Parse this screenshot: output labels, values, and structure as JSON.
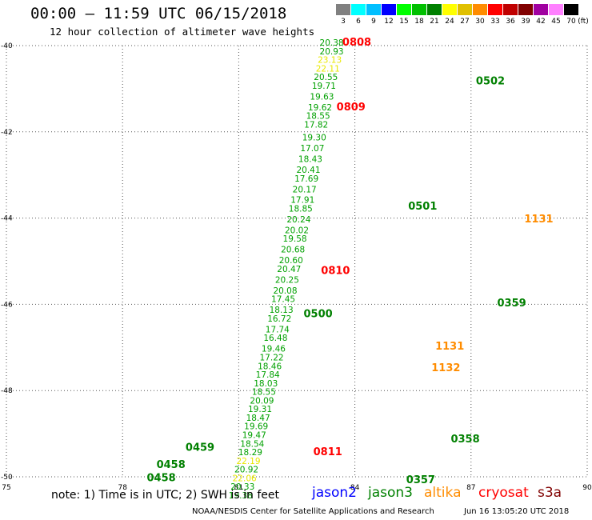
{
  "header": {
    "title": "00:00 – 11:59 UTC 06/15/2018",
    "subtitle": "12 hour collection of altimeter wave heights"
  },
  "colorbar": {
    "unit": "(ft)",
    "bins": [
      {
        "label": "3",
        "color": "#808080"
      },
      {
        "label": "6",
        "color": "#00ffff"
      },
      {
        "label": "9",
        "color": "#00bfff"
      },
      {
        "label": "12",
        "color": "#0000ff"
      },
      {
        "label": "15",
        "color": "#00ff00"
      },
      {
        "label": "18",
        "color": "#00c000"
      },
      {
        "label": "21",
        "color": "#008000"
      },
      {
        "label": "24",
        "color": "#ffff00"
      },
      {
        "label": "27",
        "color": "#e0c000"
      },
      {
        "label": "30",
        "color": "#ff8c00"
      },
      {
        "label": "33",
        "color": "#ff0000"
      },
      {
        "label": "36",
        "color": "#c00000"
      },
      {
        "label": "39",
        "color": "#800000"
      },
      {
        "label": "42",
        "color": "#a000a0"
      },
      {
        "label": "45",
        "color": "#ff80ff"
      },
      {
        "label": "70",
        "color": "#000000"
      }
    ]
  },
  "footer": {
    "note": "note: 1) Time is in UTC; 2) SWH is in feet",
    "credit": "NOAA/NESDIS Center for Satellite Applications and Research",
    "timestamp": "Jun 16 13:05:20 UTC 2018"
  },
  "legend": [
    {
      "name": "jason2",
      "color": "#0000ff"
    },
    {
      "name": "jason3",
      "color": "#008000"
    },
    {
      "name": "altika",
      "color": "#ff8c00"
    },
    {
      "name": "cryosat",
      "color": "#ff0000"
    },
    {
      "name": "s3a",
      "color": "#800000"
    }
  ],
  "chart_data": {
    "type": "scatter",
    "xlim": [
      75,
      90
    ],
    "ylim": [
      -50,
      -40
    ],
    "x_ticks": [
      "75",
      "78",
      "81",
      "84",
      "87",
      "90"
    ],
    "y_ticks": [
      "-40",
      "-42",
      "-44",
      "-46",
      "-48",
      "-50"
    ],
    "grid": true,
    "colors": {
      "green": "#00a000",
      "yellow": "#e8e800",
      "orange": "#ff8c00",
      "red": "#ff0000",
      "darkgreen": "#008000"
    },
    "values": [
      {
        "x": 83.4,
        "y": -40.0,
        "text": "20.38",
        "c": "green"
      },
      {
        "x": 83.4,
        "y": -40.2,
        "text": "20.93",
        "c": "green"
      },
      {
        "x": 83.35,
        "y": -40.4,
        "text": "23.13",
        "c": "yellow"
      },
      {
        "x": 83.3,
        "y": -40.6,
        "text": "22.11",
        "c": "yellow"
      },
      {
        "x": 83.25,
        "y": -40.8,
        "text": "20.55",
        "c": "green"
      },
      {
        "x": 83.2,
        "y": -41.0,
        "text": "19.71",
        "c": "green"
      },
      {
        "x": 83.15,
        "y": -41.25,
        "text": "19.63",
        "c": "green"
      },
      {
        "x": 83.1,
        "y": -41.5,
        "text": "19.62",
        "c": "green"
      },
      {
        "x": 83.05,
        "y": -41.7,
        "text": "18.55",
        "c": "green"
      },
      {
        "x": 83.0,
        "y": -41.9,
        "text": "17.82",
        "c": "green"
      },
      {
        "x": 82.95,
        "y": -42.2,
        "text": "19.30",
        "c": "green"
      },
      {
        "x": 82.9,
        "y": -42.45,
        "text": "17.07",
        "c": "green"
      },
      {
        "x": 82.85,
        "y": -42.7,
        "text": "18.43",
        "c": "green"
      },
      {
        "x": 82.8,
        "y": -42.95,
        "text": "20.41",
        "c": "green"
      },
      {
        "x": 82.75,
        "y": -43.15,
        "text": "17.69",
        "c": "green"
      },
      {
        "x": 82.7,
        "y": -43.4,
        "text": "20.17",
        "c": "green"
      },
      {
        "x": 82.65,
        "y": -43.65,
        "text": "17.91",
        "c": "green"
      },
      {
        "x": 82.6,
        "y": -43.85,
        "text": "18.85",
        "c": "green"
      },
      {
        "x": 82.55,
        "y": -44.1,
        "text": "20.24",
        "c": "green"
      },
      {
        "x": 82.5,
        "y": -44.35,
        "text": "20.02",
        "c": "green"
      },
      {
        "x": 82.45,
        "y": -44.55,
        "text": "19.58",
        "c": "green"
      },
      {
        "x": 82.4,
        "y": -44.8,
        "text": "20.68",
        "c": "green"
      },
      {
        "x": 82.35,
        "y": -45.05,
        "text": "20.60",
        "c": "green"
      },
      {
        "x": 82.3,
        "y": -45.25,
        "text": "20.47",
        "c": "green"
      },
      {
        "x": 82.25,
        "y": -45.5,
        "text": "20.25",
        "c": "green"
      },
      {
        "x": 82.2,
        "y": -45.75,
        "text": "20.08",
        "c": "green"
      },
      {
        "x": 82.15,
        "y": -45.95,
        "text": "17.45",
        "c": "green"
      },
      {
        "x": 82.1,
        "y": -46.2,
        "text": "18.13",
        "c": "green"
      },
      {
        "x": 82.05,
        "y": -46.4,
        "text": "16.72",
        "c": "green"
      },
      {
        "x": 82.0,
        "y": -46.65,
        "text": "17.74",
        "c": "green"
      },
      {
        "x": 81.95,
        "y": -46.85,
        "text": "16.48",
        "c": "green"
      },
      {
        "x": 81.9,
        "y": -47.1,
        "text": "19.46",
        "c": "green"
      },
      {
        "x": 81.85,
        "y": -47.3,
        "text": "17.22",
        "c": "green"
      },
      {
        "x": 81.8,
        "y": -47.5,
        "text": "18.46",
        "c": "green"
      },
      {
        "x": 81.75,
        "y": -47.7,
        "text": "17.84",
        "c": "green"
      },
      {
        "x": 81.7,
        "y": -47.9,
        "text": "18.03",
        "c": "green"
      },
      {
        "x": 81.65,
        "y": -48.1,
        "text": "18.55",
        "c": "green"
      },
      {
        "x": 81.6,
        "y": -48.3,
        "text": "20.09",
        "c": "green"
      },
      {
        "x": 81.55,
        "y": -48.5,
        "text": "19.31",
        "c": "green"
      },
      {
        "x": 81.5,
        "y": -48.7,
        "text": "18.47",
        "c": "green"
      },
      {
        "x": 81.45,
        "y": -48.9,
        "text": "19.69",
        "c": "green"
      },
      {
        "x": 81.4,
        "y": -49.1,
        "text": "19.47",
        "c": "green"
      },
      {
        "x": 81.35,
        "y": -49.3,
        "text": "18.54",
        "c": "green"
      },
      {
        "x": 81.3,
        "y": -49.5,
        "text": "18.29",
        "c": "green"
      },
      {
        "x": 81.25,
        "y": -49.7,
        "text": "22.19",
        "c": "yellow"
      },
      {
        "x": 81.2,
        "y": -49.9,
        "text": "20.92",
        "c": "green"
      },
      {
        "x": 81.15,
        "y": -50.1,
        "text": "22.06",
        "c": "yellow"
      },
      {
        "x": 81.1,
        "y": -50.3,
        "text": "20.33",
        "c": "green"
      },
      {
        "x": 81.05,
        "y": -50.5,
        "text": "19.38",
        "c": "green"
      }
    ],
    "pass_labels": [
      {
        "x": 84.05,
        "y": -40.0,
        "text": "0808",
        "c": "red"
      },
      {
        "x": 83.9,
        "y": -41.5,
        "text": "0809",
        "c": "red"
      },
      {
        "x": 83.5,
        "y": -45.3,
        "text": "0810",
        "c": "red"
      },
      {
        "x": 83.3,
        "y": -49.5,
        "text": "0811",
        "c": "red"
      },
      {
        "x": 87.5,
        "y": -40.9,
        "text": "0502",
        "c": "darkgreen"
      },
      {
        "x": 85.75,
        "y": -43.8,
        "text": "0501",
        "c": "darkgreen"
      },
      {
        "x": 83.05,
        "y": -46.3,
        "text": "0500",
        "c": "darkgreen"
      },
      {
        "x": 80.0,
        "y": -49.4,
        "text": "0459",
        "c": "darkgreen"
      },
      {
        "x": 79.25,
        "y": -49.8,
        "text": "0458",
        "c": "darkgreen"
      },
      {
        "x": 79.0,
        "y": -50.1,
        "text": "0458",
        "c": "darkgreen"
      },
      {
        "x": 85.7,
        "y": -50.15,
        "text": "0357",
        "c": "darkgreen"
      },
      {
        "x": 86.85,
        "y": -49.2,
        "text": "0358",
        "c": "darkgreen"
      },
      {
        "x": 88.05,
        "y": -46.05,
        "text": "0359",
        "c": "darkgreen"
      },
      {
        "x": 86.45,
        "y": -47.05,
        "text": "1131",
        "c": "orange"
      },
      {
        "x": 86.35,
        "y": -47.55,
        "text": "1132",
        "c": "orange"
      },
      {
        "x": 88.75,
        "y": -44.1,
        "text": "1131",
        "c": "orange"
      }
    ]
  }
}
